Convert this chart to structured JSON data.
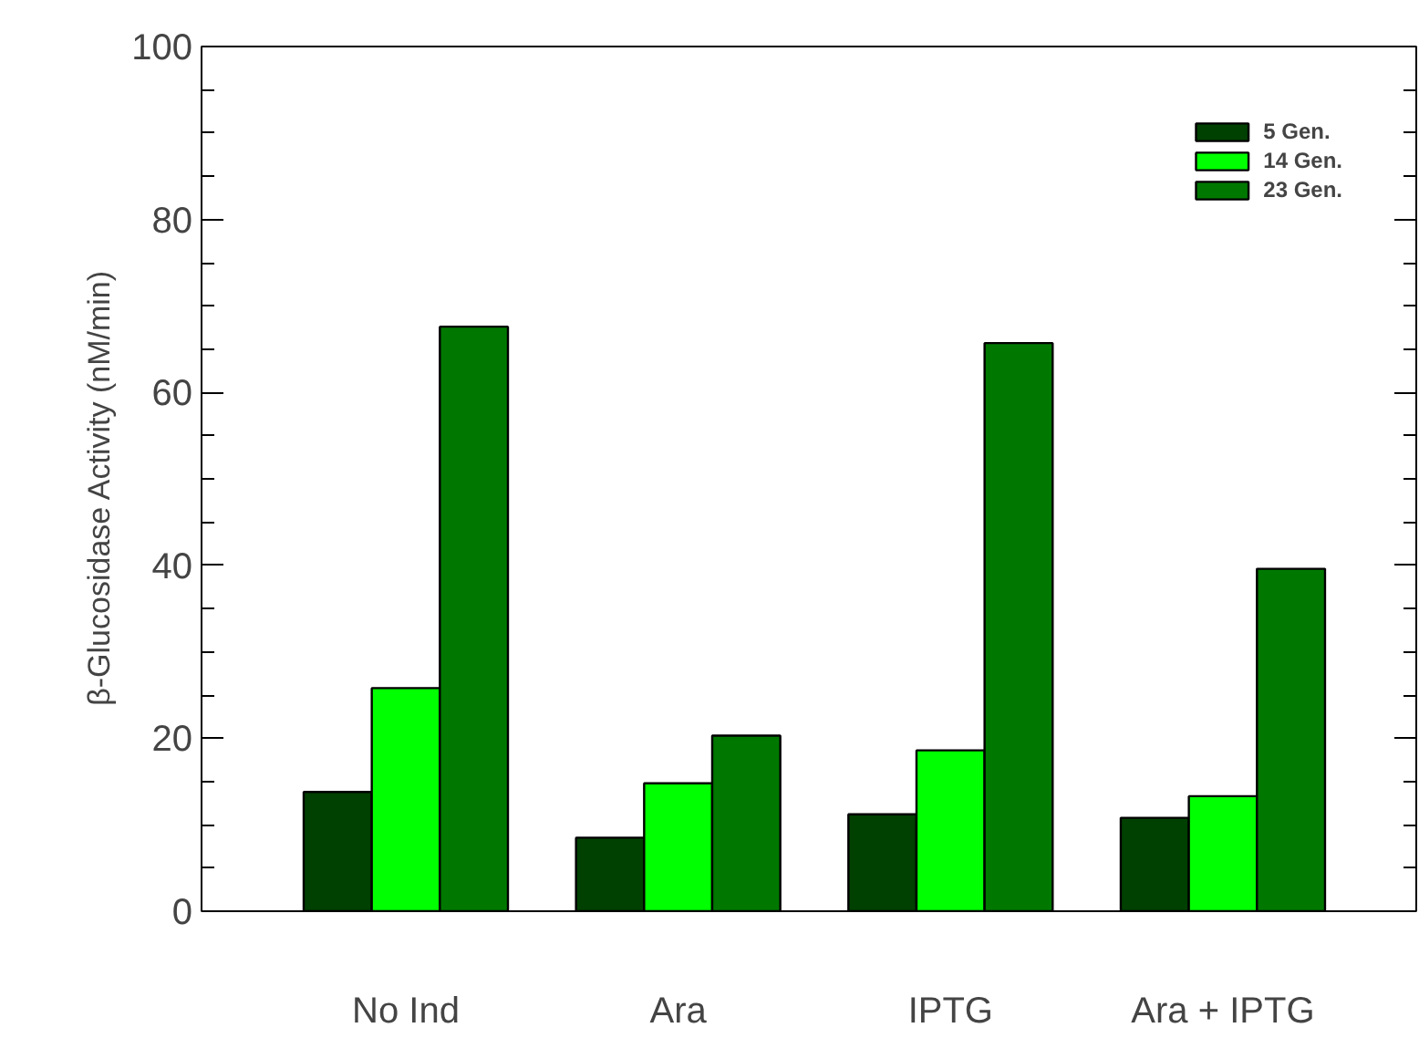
{
  "chart_data": {
    "type": "bar",
    "ylabel": "β-Glucosidase Activity   (nM/min)",
    "categories": [
      "No Ind",
      "Ara",
      "IPTG",
      "Ara + IPTG"
    ],
    "series": [
      {
        "name": "5 Gen.",
        "color": "#004000",
        "values": [
          13.8,
          8.5,
          11.2,
          10.8
        ]
      },
      {
        "name": "14 Gen.",
        "color": "#00ff00",
        "values": [
          25.8,
          14.8,
          18.6,
          13.3
        ]
      },
      {
        "name": "23 Gen.",
        "color": "#007800",
        "values": [
          67.6,
          20.3,
          65.7,
          39.6
        ]
      }
    ],
    "ylim": [
      0,
      100
    ],
    "yticks": [
      0,
      20,
      40,
      60,
      80,
      100
    ],
    "grid": false,
    "legend": "top right"
  }
}
